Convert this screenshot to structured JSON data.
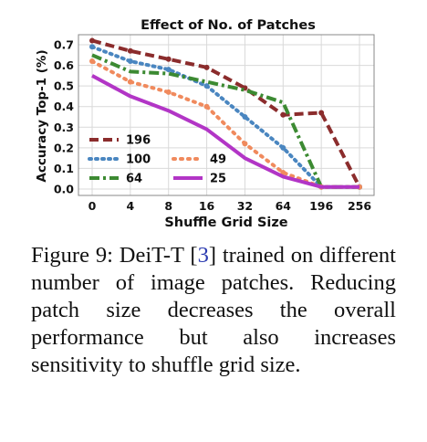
{
  "chart_data": {
    "type": "line",
    "title": "Effect of No. of Patches",
    "xlabel": "Shuffle Grid Size",
    "ylabel": "Accuracy Top-1 (%)",
    "categories": [
      "0",
      "4",
      "8",
      "16",
      "32",
      "64",
      "196",
      "256"
    ],
    "ylim": [
      0.0,
      0.7
    ],
    "yticks": [
      "0.0",
      "0.1",
      "0.2",
      "0.3",
      "0.4",
      "0.5",
      "0.6",
      "0.7"
    ],
    "grid": true,
    "legend_position": "bottom-left",
    "series": [
      {
        "name": "196",
        "color": "#8b2c2c",
        "dash": "10,5",
        "marker": true,
        "values": [
          0.72,
          0.67,
          0.63,
          0.59,
          0.49,
          0.36,
          0.37,
          0.01
        ]
      },
      {
        "name": "100",
        "color": "#4a86c0",
        "dash": "2,5",
        "marker": true,
        "values": [
          0.69,
          0.62,
          0.58,
          0.5,
          0.35,
          0.2,
          0.01,
          0.01
        ]
      },
      {
        "name": "64",
        "color": "#3c8a32",
        "dash": "11,4,3,4",
        "marker": false,
        "values": [
          0.65,
          0.57,
          0.56,
          0.52,
          0.48,
          0.42,
          0.01,
          0.01
        ]
      },
      {
        "name": "49",
        "color": "#f08a5d",
        "dash": "2,6",
        "marker": true,
        "values": [
          0.62,
          0.52,
          0.47,
          0.4,
          0.22,
          0.08,
          0.01,
          0.01
        ]
      },
      {
        "name": "25",
        "color": "#b235c6",
        "dash": "",
        "marker": false,
        "values": [
          0.55,
          0.45,
          0.38,
          0.29,
          0.15,
          0.06,
          0.01,
          0.01
        ]
      }
    ]
  },
  "caption": {
    "prefix": "Figure 9:   DeiT-T [",
    "ref": "3",
    "suffix": "] trained on different number of image patches. Reducing patch size decreases the overall performance but also increases sensitivity to shuffle grid size."
  }
}
